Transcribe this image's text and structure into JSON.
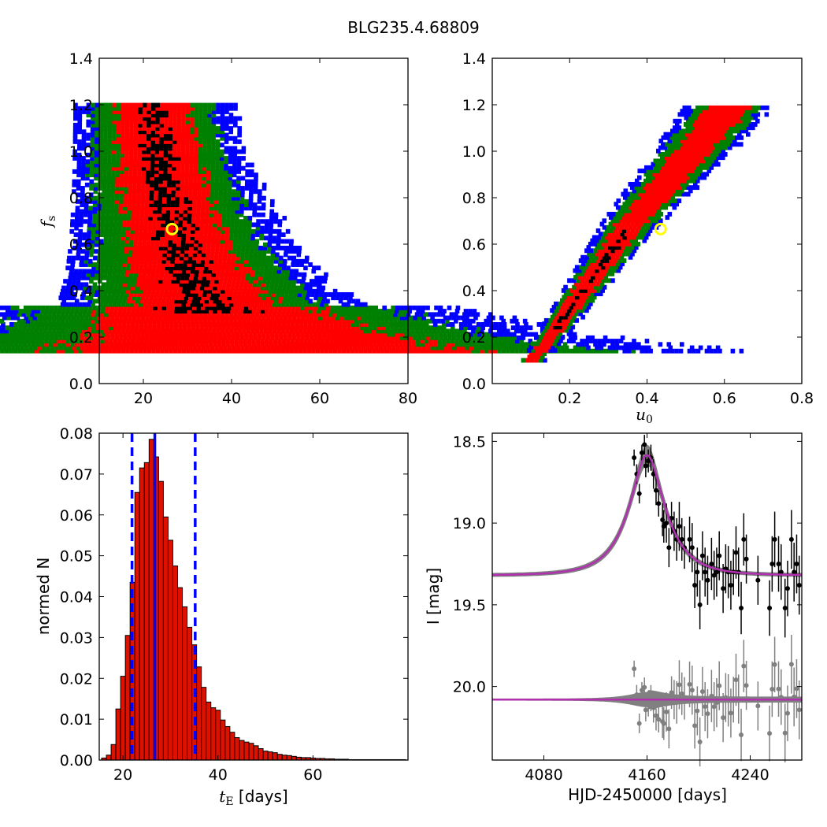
{
  "figure": {
    "title": "BLG235.4.68809"
  },
  "colors": {
    "one_sigma": "#000000",
    "two_sigma": "#ff0000",
    "three_sigma": "#008000",
    "four_sigma": "#0000ff",
    "best_fit": "#ffff00",
    "model": "#b030b0",
    "band": "#808080",
    "hist_bar": "#dd1100"
  },
  "chart_data": [
    {
      "type": "heatmap",
      "panel": "fs-vs-tE",
      "xlabel": "",
      "ylabel_main": "f",
      "ylabel_sub": "s",
      "xlim": [
        10,
        80
      ],
      "ylim": [
        0.0,
        1.4
      ],
      "x_ticks": [
        "20",
        "40",
        "60",
        "80"
      ],
      "y_ticks": [
        "0.0",
        "0.2",
        "0.4",
        "0.6",
        "0.8",
        "1.0",
        "1.2",
        "1.4"
      ],
      "band": {
        "fs_top": 1.21,
        "fs_bottom": 0.15,
        "center_k": 16.0,
        "center_x0": 7.0
      },
      "best_fit": {
        "x": 26.5,
        "y": 0.665
      }
    },
    {
      "type": "heatmap",
      "panel": "fs-vs-u0",
      "xlabel_main": "u",
      "xlabel_sub": "0",
      "ylabel": "",
      "xlim": [
        0.0,
        0.8
      ],
      "ylim": [
        0.0,
        1.4
      ],
      "x_ticks": [
        "0.2",
        "0.4",
        "0.6",
        "0.8"
      ],
      "y_ticks": [
        "0.0",
        "0.2",
        "0.4",
        "0.6",
        "0.8",
        "1.0",
        "1.2",
        "1.4"
      ],
      "band": {
        "fs_top": 1.21,
        "fs_bottom": 0.11
      },
      "best_fit": {
        "x": 0.435,
        "y": 0.665
      }
    },
    {
      "type": "bar",
      "panel": "tE-histogram",
      "xlabel_main": "t",
      "xlabel_sub": "E",
      "xlabel_rest": " [days]",
      "ylabel": "normed N",
      "xlim": [
        15,
        80
      ],
      "ylim": [
        0.0,
        0.08
      ],
      "x_ticks": [
        "20",
        "40",
        "60"
      ],
      "y_ticks": [
        "0.00",
        "0.01",
        "0.02",
        "0.03",
        "0.04",
        "0.05",
        "0.06",
        "0.07",
        "0.08"
      ],
      "bin_start": 15.5,
      "bin_width": 1.0,
      "values": [
        0.0005,
        0.0012,
        0.0038,
        0.0125,
        0.0205,
        0.0305,
        0.0435,
        0.0655,
        0.0715,
        0.0728,
        0.0785,
        0.0742,
        0.0682,
        0.0595,
        0.0538,
        0.0475,
        0.0422,
        0.0375,
        0.0325,
        0.0282,
        0.0228,
        0.0178,
        0.0142,
        0.0128,
        0.0122,
        0.0098,
        0.0082,
        0.0068,
        0.0055,
        0.0048,
        0.0044,
        0.0041,
        0.0035,
        0.0028,
        0.0022,
        0.002,
        0.0018,
        0.0014,
        0.0012,
        0.0011,
        0.0009,
        0.0007,
        0.0006,
        0.0006,
        0.0005,
        0.0004,
        0.0004,
        0.0003,
        0.0003,
        0.0002,
        0.0002,
        0.0002,
        0.0001,
        0.0001,
        0.0001,
        0.0001,
        0.0001,
        0.0001,
        0.0001,
        0.0001,
        0.0001,
        0.0001,
        0.0001,
        0.0001
      ],
      "median": 26.7,
      "interval": [
        21.9,
        35.2
      ]
    },
    {
      "type": "scatter",
      "panel": "light-curve",
      "xlabel": "HJD-2450000 [days]",
      "ylabel": "I [mag]",
      "xlim": [
        4040,
        4280
      ],
      "ylim": [
        20.45,
        18.45
      ],
      "x_ticks": [
        "4080",
        "4160",
        "4240"
      ],
      "x_tick_values": [
        4080,
        4160,
        4240
      ],
      "y_ticks": [
        "18.5",
        "19.0",
        "19.5",
        "20.0"
      ],
      "y_tick_values": [
        18.5,
        19.0,
        19.5,
        20.0
      ],
      "model": {
        "baseline": 19.32,
        "peak": 18.42,
        "t0": 4160,
        "tE": 26.7,
        "u0": 0.435,
        "fs": 0.665
      },
      "residual_offset": 20.08,
      "data": [
        [
          4150,
          18.6,
          0.05
        ],
        [
          4152,
          18.7,
          0.06
        ],
        [
          4154,
          18.82,
          0.06
        ],
        [
          4156,
          18.57,
          0.05
        ],
        [
          4158,
          18.52,
          0.06
        ],
        [
          4159,
          18.65,
          0.07
        ],
        [
          4161,
          18.62,
          0.07
        ],
        [
          4163,
          18.6,
          0.08
        ],
        [
          4165,
          18.7,
          0.09
        ],
        [
          4167,
          18.8,
          0.09
        ],
        [
          4169,
          18.88,
          0.08
        ],
        [
          4172,
          18.98,
          0.1
        ],
        [
          4173,
          19.02,
          0.1
        ],
        [
          4175,
          19.0,
          0.12
        ],
        [
          4177,
          19.15,
          0.12
        ],
        [
          4179,
          18.97,
          0.1
        ],
        [
          4181,
          19.05,
          0.12
        ],
        [
          4183,
          19.1,
          0.13
        ],
        [
          4185,
          19.02,
          0.15
        ],
        [
          4187,
          19.1,
          0.13
        ],
        [
          4189,
          19.15,
          0.13
        ],
        [
          4193,
          19.1,
          0.14
        ],
        [
          4195,
          19.15,
          0.15
        ],
        [
          4197,
          19.38,
          0.14
        ],
        [
          4199,
          19.3,
          0.15
        ],
        [
          4201,
          19.5,
          0.15
        ],
        [
          4203,
          19.2,
          0.15
        ],
        [
          4205,
          19.3,
          0.15
        ],
        [
          4207,
          19.35,
          0.15
        ],
        [
          4210,
          19.25,
          0.16
        ],
        [
          4212,
          19.32,
          0.15
        ],
        [
          4214,
          19.3,
          0.15
        ],
        [
          4216,
          19.2,
          0.15
        ],
        [
          4219,
          19.4,
          0.15
        ],
        [
          4221,
          19.28,
          0.15
        ],
        [
          4223,
          19.3,
          0.16
        ],
        [
          4225,
          19.38,
          0.15
        ],
        [
          4227,
          19.3,
          0.14
        ],
        [
          4229,
          19.18,
          0.16
        ],
        [
          4231,
          19.3,
          0.15
        ],
        [
          4233,
          19.52,
          0.16
        ],
        [
          4235,
          19.1,
          0.16
        ],
        [
          4237,
          19.22,
          0.15
        ],
        [
          4246,
          19.35,
          0.15
        ],
        [
          4255,
          19.52,
          0.17
        ],
        [
          4257,
          19.25,
          0.17
        ],
        [
          4259,
          19.1,
          0.17
        ],
        [
          4262,
          19.25,
          0.17
        ],
        [
          4264,
          19.3,
          0.17
        ],
        [
          4267,
          19.52,
          0.18
        ],
        [
          4269,
          19.4,
          0.17
        ],
        [
          4272,
          19.1,
          0.18
        ],
        [
          4274,
          19.3,
          0.18
        ],
        [
          4276,
          19.25,
          0.18
        ],
        [
          4278,
          19.38,
          0.18
        ]
      ]
    }
  ]
}
